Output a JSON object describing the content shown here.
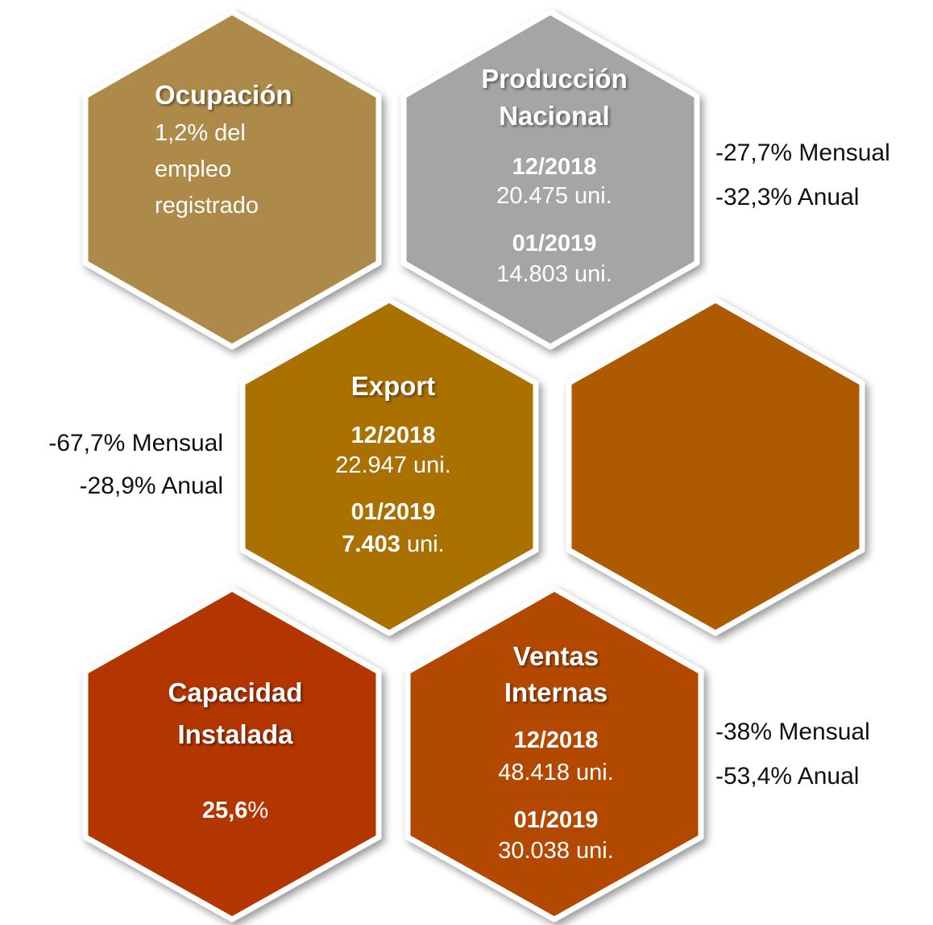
{
  "hexagons": [
    {
      "title": "Ocupación",
      "lines": [
        "1,2% del",
        "empleo",
        "registrado"
      ]
    },
    {
      "title_lines": [
        "Producción",
        "Nacional"
      ],
      "periods": [
        {
          "date": "12/2018",
          "value": "20.475 uni."
        },
        {
          "date": "01/2019",
          "value": "14.803 uni."
        }
      ]
    },
    {
      "title": "Export",
      "periods": [
        {
          "date": "12/2018",
          "value": "22.947 uni."
        },
        {
          "date": "01/2019",
          "value_bold": "7.403",
          "value": "uni."
        }
      ]
    },
    {
      "title_lines": [
        "Capacidad",
        "Instalada"
      ],
      "value_bold": "25,6",
      "value": "%"
    },
    {
      "title_lines": [
        "Ventas",
        "Internas"
      ],
      "periods": [
        {
          "date": "12/2018",
          "value": "48.418 uni."
        },
        {
          "date": "01/2019",
          "value": "30.038 uni."
        }
      ]
    }
  ],
  "notes": [
    [
      "-27,7% Mensual",
      "-32,3% Anual"
    ],
    [
      "-67,7% Mensual",
      "-28,9% Anual"
    ],
    [
      "-38% Mensual",
      "-53,4% Anual"
    ]
  ]
}
